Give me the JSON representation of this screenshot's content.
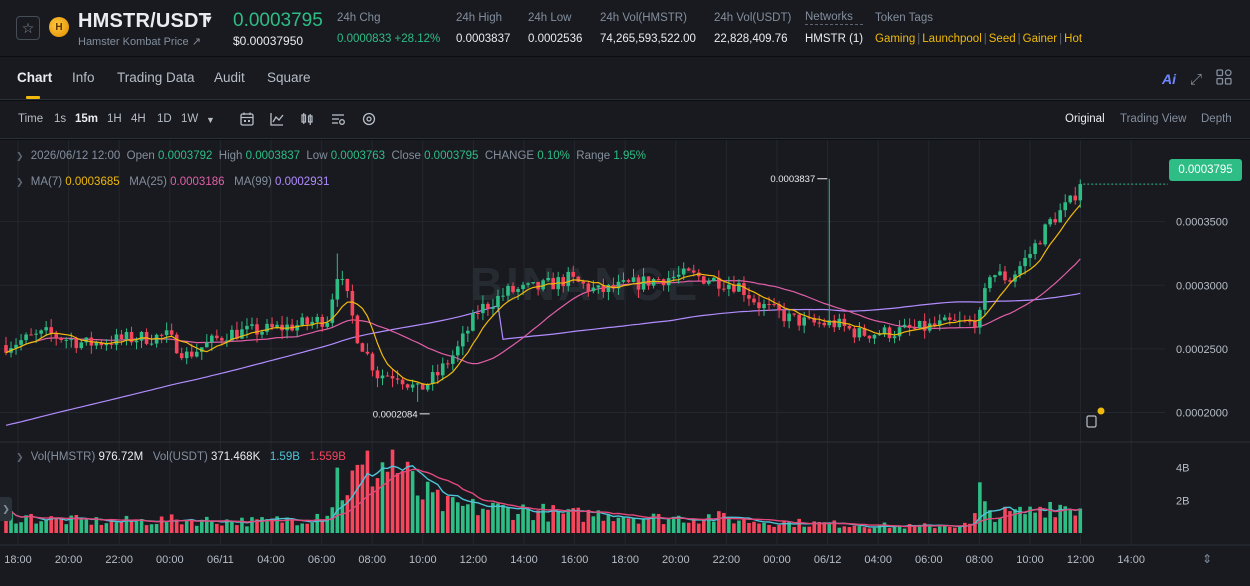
{
  "header": {
    "pair": "HMSTR/USDT",
    "name_link": "Hamster Kombat Price ↗",
    "last_price": "0.0003795",
    "last_price_usd": "$0.00037950",
    "stats": {
      "chg_label": "24h Chg",
      "chg_value": "0.0000833 +28.12%",
      "high_label": "24h High",
      "high_value": "0.0003837",
      "low_label": "24h Low",
      "low_value": "0.0002536",
      "vol_base_label": "24h Vol(HMSTR)",
      "vol_base_value": "74,265,593,522.00",
      "vol_quote_label": "24h Vol(USDT)",
      "vol_quote_value": "22,828,409.76",
      "networks_label": "Networks",
      "networks_value": "HMSTR (1)",
      "tags_label": "Token Tags",
      "tags": [
        "Gaming",
        "Launchpool",
        "Seed",
        "Gainer",
        "Hot"
      ]
    }
  },
  "tabs": [
    "Chart",
    "Info",
    "Trading Data",
    "Audit",
    "Square"
  ],
  "active_tab": "Chart",
  "toolbar": {
    "intervals": [
      "Time",
      "1s",
      "15m",
      "1H",
      "4H",
      "1D",
      "1W"
    ],
    "active_interval": "15m",
    "views": [
      "Original",
      "Trading View",
      "Depth"
    ],
    "active_view": "Original",
    "ai_label": "Ai"
  },
  "ohlc": {
    "date": "2026/06/12 12:00",
    "open_label": "Open",
    "open": "0.0003792",
    "high_label": "High",
    "high": "0.0003837",
    "low_label": "Low",
    "low": "0.0003763",
    "close_label": "Close",
    "close": "0.0003795",
    "change_label": "CHANGE",
    "change": "0.10%",
    "range_label": "Range",
    "range": "1.95%"
  },
  "ma": {
    "ma7_label": "MA(7)",
    "ma7": "0.0003685",
    "ma25_label": "MA(25)",
    "ma25": "0.0003186",
    "ma99_label": "MA(99)",
    "ma99": "0.0002931"
  },
  "volume_legend": {
    "base_label": "Vol(HMSTR)",
    "base": "976.72M",
    "quote_label": "Vol(USDT)",
    "quote": "371.468K",
    "ma_a": "1.59B",
    "ma_b": "1.559B"
  },
  "watermark": "BINANCE",
  "colors": {
    "up": "#2ebd85",
    "down": "#f6465d",
    "ma7": "#f0b90b",
    "ma25": "#e25fa8",
    "ma99": "#b28cff",
    "accent": "#f0b90b",
    "bg": "#181a20",
    "grid": "#23272e"
  },
  "chart_data": [
    {
      "type": "candlestick",
      "title": "HMSTR/USDT 15m",
      "x_ticks": [
        "18:00",
        "20:00",
        "22:00",
        "00:00",
        "06/11",
        "04:00",
        "06:00",
        "08:00",
        "10:00",
        "12:00",
        "14:00",
        "16:00",
        "18:00",
        "20:00",
        "22:00",
        "00:00",
        "06/12",
        "04:00",
        "06:00",
        "08:00",
        "10:00",
        "12:00",
        "14:00"
      ],
      "y_ticks": [
        "0.0003500",
        "0.0003000",
        "0.0002500",
        "0.0002000"
      ],
      "ylim": [
        0.00018,
        0.0004
      ],
      "current_price": "0.0003795",
      "high_marker": "0.0003837",
      "low_marker": "0.0002084",
      "close_path": [
        [
          0,
          0.000253
        ],
        [
          8,
          0.000262
        ],
        [
          16,
          0.000254
        ],
        [
          24,
          0.000258
        ],
        [
          32,
          0.00026
        ],
        [
          36,
          0.000245
        ],
        [
          44,
          0.000262
        ],
        [
          52,
          0.000265
        ],
        [
          60,
          0.00027
        ],
        [
          64,
          0.000274
        ],
        [
          66,
          0.00031
        ],
        [
          68,
          0.00029
        ],
        [
          70,
          0.00026
        ],
        [
          74,
          0.00023
        ],
        [
          78,
          0.00023
        ],
        [
          82,
          0.000217
        ],
        [
          86,
          0.00023
        ],
        [
          90,
          0.00025
        ],
        [
          94,
          0.00028
        ],
        [
          100,
          0.000295
        ],
        [
          106,
          0.000298
        ],
        [
          112,
          0.000305
        ],
        [
          118,
          0.000295
        ],
        [
          124,
          0.0003
        ],
        [
          130,
          0.000305
        ],
        [
          136,
          0.000308
        ],
        [
          140,
          0.000305
        ],
        [
          146,
          0.0003
        ],
        [
          150,
          0.000285
        ],
        [
          156,
          0.000274
        ],
        [
          160,
          0.00027
        ],
        [
          164,
          0.00027
        ],
        [
          165,
          0.00027
        ],
        [
          170,
          0.000262
        ],
        [
          176,
          0.000263
        ],
        [
          182,
          0.000266
        ],
        [
          188,
          0.00027
        ],
        [
          192,
          0.00027
        ],
        [
          194,
          0.000275
        ],
        [
          196,
          0.00031
        ],
        [
          200,
          0.000305
        ],
        [
          204,
          0.000325
        ],
        [
          208,
          0.00035
        ],
        [
          212,
          0.000365
        ],
        [
          214,
          0.0003795
        ]
      ],
      "series": [
        {
          "name": "MA(7)",
          "color": "#f0b90b"
        },
        {
          "name": "MA(25)",
          "color": "#e25fa8"
        },
        {
          "name": "MA(99)",
          "color": "#b28cff"
        }
      ]
    },
    {
      "type": "bar",
      "title": "Volume",
      "y_ticks": [
        "4B",
        "2B"
      ],
      "ylim": [
        0,
        5.2
      ],
      "unit": "B",
      "profile": [
        [
          0,
          1.1
        ],
        [
          10,
          0.8
        ],
        [
          20,
          0.7
        ],
        [
          35,
          0.8
        ],
        [
          50,
          0.7
        ],
        [
          60,
          0.9
        ],
        [
          64,
          1.4
        ],
        [
          68,
          3.0
        ],
        [
          74,
          4.2
        ],
        [
          78,
          4.0
        ],
        [
          82,
          2.5
        ],
        [
          88,
          1.6
        ],
        [
          96,
          1.5
        ],
        [
          104,
          1.4
        ],
        [
          112,
          1.1
        ],
        [
          120,
          1.2
        ],
        [
          130,
          0.9
        ],
        [
          140,
          1.0
        ],
        [
          150,
          0.7
        ],
        [
          160,
          0.6
        ],
        [
          170,
          0.5
        ],
        [
          180,
          0.4
        ],
        [
          192,
          0.5
        ],
        [
          194,
          1.6
        ],
        [
          198,
          1.1
        ],
        [
          204,
          1.3
        ],
        [
          208,
          1.8
        ],
        [
          214,
          1.5
        ]
      ]
    }
  ]
}
